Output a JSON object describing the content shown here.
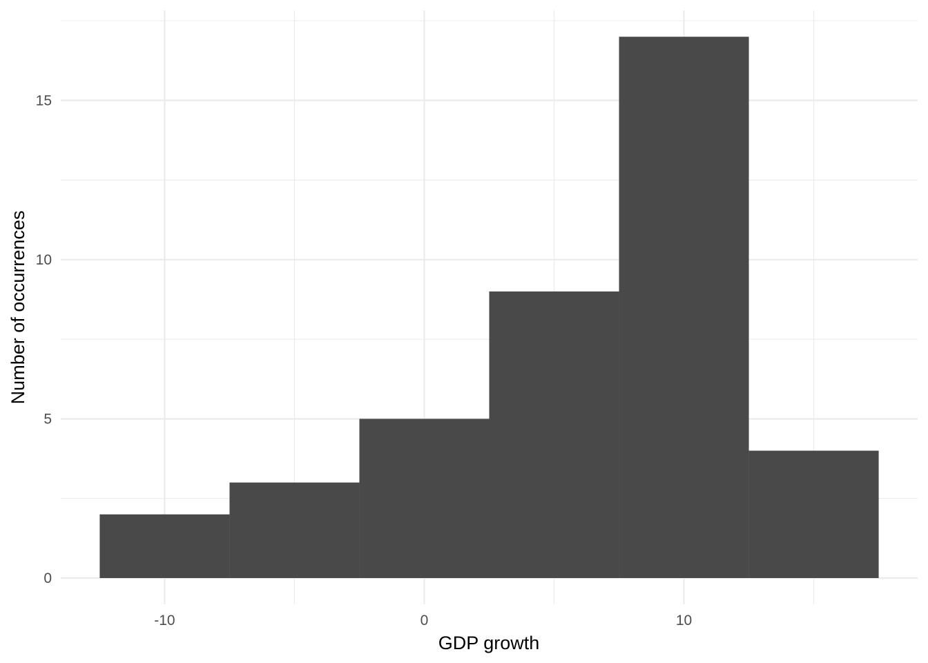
{
  "chart_data": {
    "type": "bar",
    "subtype": "histogram",
    "title": "",
    "xlabel": "GDP growth",
    "ylabel": "Number of occurrences",
    "bin_width": 5,
    "bins": [
      {
        "x0": -12.5,
        "x1": -7.5,
        "count": 2
      },
      {
        "x0": -7.5,
        "x1": -2.5,
        "count": 3
      },
      {
        "x0": -2.5,
        "x1": 2.5,
        "count": 5
      },
      {
        "x0": 2.5,
        "x1": 7.5,
        "count": 9
      },
      {
        "x0": 7.5,
        "x1": 12.5,
        "count": 17
      },
      {
        "x0": 12.5,
        "x1": 17.5,
        "count": 4
      }
    ],
    "xlim": [
      -14,
      19
    ],
    "ylim": [
      0,
      17.85
    ],
    "x_ticks": [
      -10,
      0,
      10
    ],
    "x_tick_labels": [
      "-10",
      "0",
      "10"
    ],
    "x_minor_ticks": [
      -5,
      5,
      15
    ],
    "y_ticks": [
      0,
      5,
      10,
      15
    ],
    "y_tick_labels": [
      "0",
      "5",
      "10",
      "15"
    ],
    "y_minor_ticks": [
      2.5,
      7.5,
      12.5,
      17.5
    ],
    "grid": true,
    "bar_color": "#494949",
    "grid_color": "#ebebeb"
  }
}
